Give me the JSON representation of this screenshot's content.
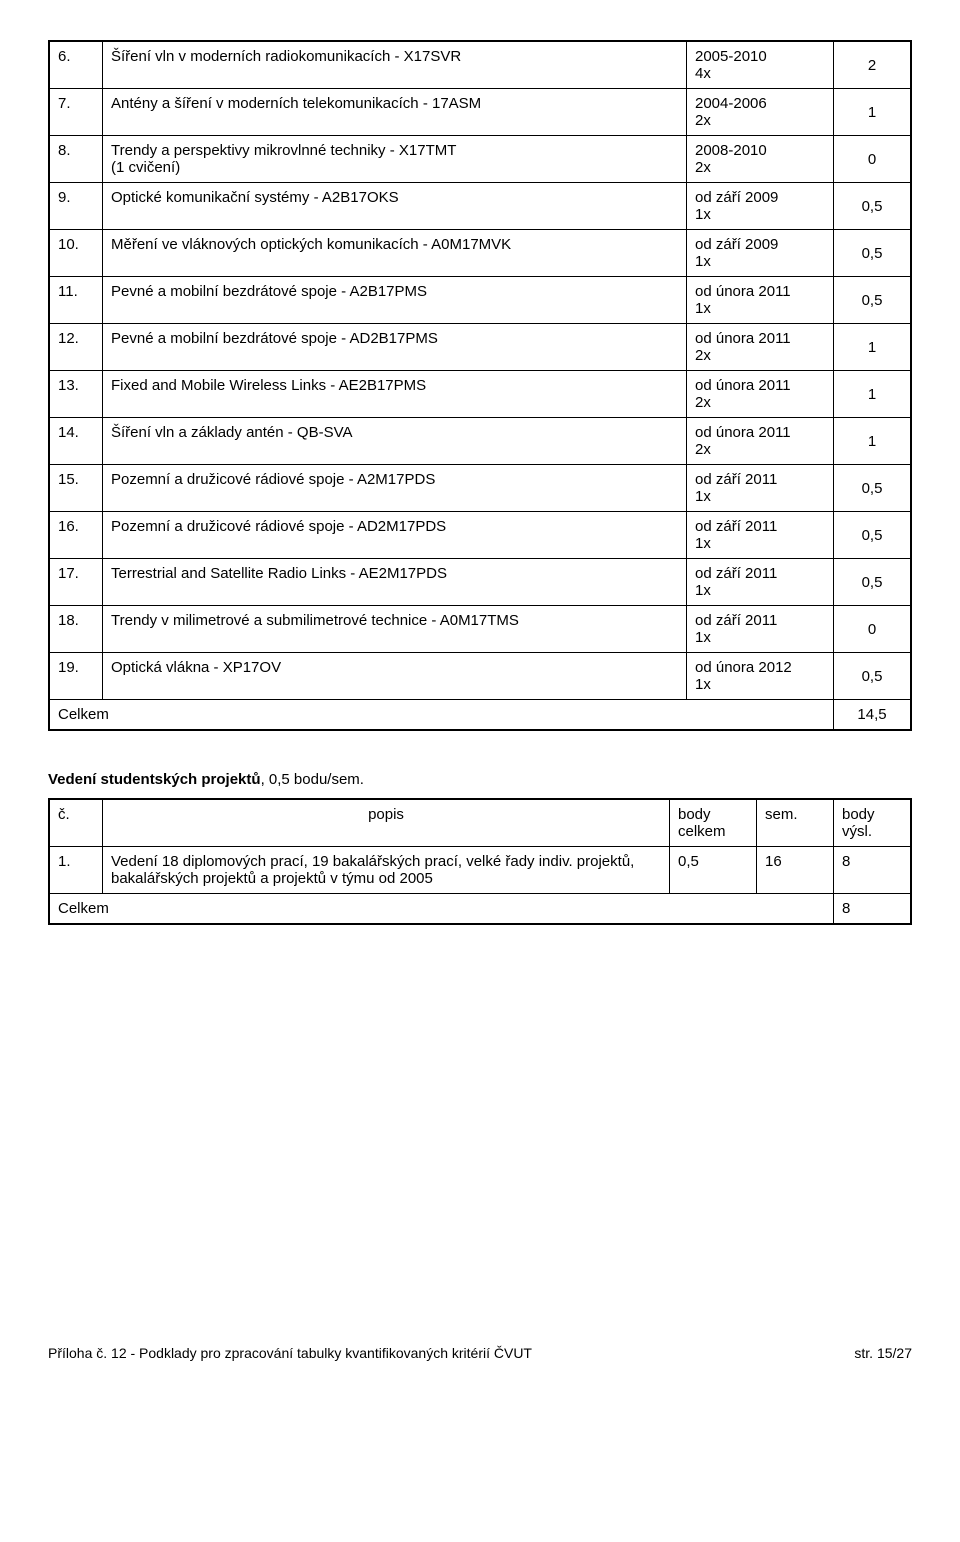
{
  "table1": {
    "rows": [
      {
        "n": "6.",
        "desc": "Šíření vln v moderních radiokomunikacích - X17SVR",
        "time": "2005-2010\n4x",
        "score": "2"
      },
      {
        "n": "7.",
        "desc": "Antény a šíření v moderních telekomunikacích - 17ASM",
        "time": "2004-2006\n2x",
        "score": "1"
      },
      {
        "n": "8.",
        "desc": "Trendy a perspektivy mikrovlnné techniky - X17TMT\n(1 cvičení)",
        "time": "2008-2010\n2x",
        "score": "0"
      },
      {
        "n": "9.",
        "desc": "Optické komunikační systémy - A2B17OKS",
        "time": "od září 2009\n1x",
        "score": "0,5"
      },
      {
        "n": "10.",
        "desc": "Měření ve vláknových optických komunikacích - A0M17MVK",
        "time": "od září 2009\n1x",
        "score": "0,5"
      },
      {
        "n": "11.",
        "desc": "Pevné a mobilní bezdrátové spoje - A2B17PMS",
        "time": "od února 2011\n1x",
        "score": "0,5"
      },
      {
        "n": "12.",
        "desc": "Pevné a mobilní bezdrátové spoje - AD2B17PMS",
        "time": "od února 2011\n2x",
        "score": "1"
      },
      {
        "n": "13.",
        "desc": "Fixed and Mobile Wireless Links - AE2B17PMS",
        "time": "od února 2011\n2x",
        "score": "1"
      },
      {
        "n": "14.",
        "desc": "Šíření vln a základy antén - QB-SVA",
        "time": "od února 2011\n2x",
        "score": "1"
      },
      {
        "n": "15.",
        "desc": "Pozemní a družicové rádiové spoje - A2M17PDS",
        "time": "od září 2011\n1x",
        "score": "0,5"
      },
      {
        "n": "16.",
        "desc": "Pozemní a družicové rádiové spoje - AD2M17PDS",
        "time": "od září 2011\n1x",
        "score": "0,5"
      },
      {
        "n": "17.",
        "desc": "Terrestrial and Satellite Radio Links - AE2M17PDS",
        "time": "od září 2011\n1x",
        "score": "0,5"
      },
      {
        "n": "18.",
        "desc": "Trendy v milimetrové a submilimetrové technice - A0M17TMS",
        "time": "od září 2011\n1x",
        "score": "0"
      },
      {
        "n": "19.",
        "desc": "Optická vlákna - XP17OV",
        "time": "od února 2012\n1x",
        "score": "0,5"
      }
    ],
    "total_label": "Celkem",
    "total_value": "14,5"
  },
  "section2": {
    "heading_strong": "Vedení studentských projektů",
    "heading_rest": ", 0,5 bodu/sem.",
    "headers": {
      "c": "č.",
      "desc": "popis",
      "body": "body\ncelkem",
      "sem": "sem.",
      "vysl": "body\nvýsl."
    },
    "row": {
      "n": "1.",
      "desc": "Vedení 18 diplomových prací, 19 bakalářských prací, velké řady indiv. projektů, bakalářských projektů a projektů v týmu od 2005",
      "body": "0,5",
      "sem": "16",
      "vysl": "8"
    },
    "total_label": "Celkem",
    "total_value": "8"
  },
  "footer": {
    "left": "Příloha č. 12 - Podklady pro zpracování tabulky kvantifikovaných kritérií ČVUT",
    "right": "str. 15/27"
  }
}
